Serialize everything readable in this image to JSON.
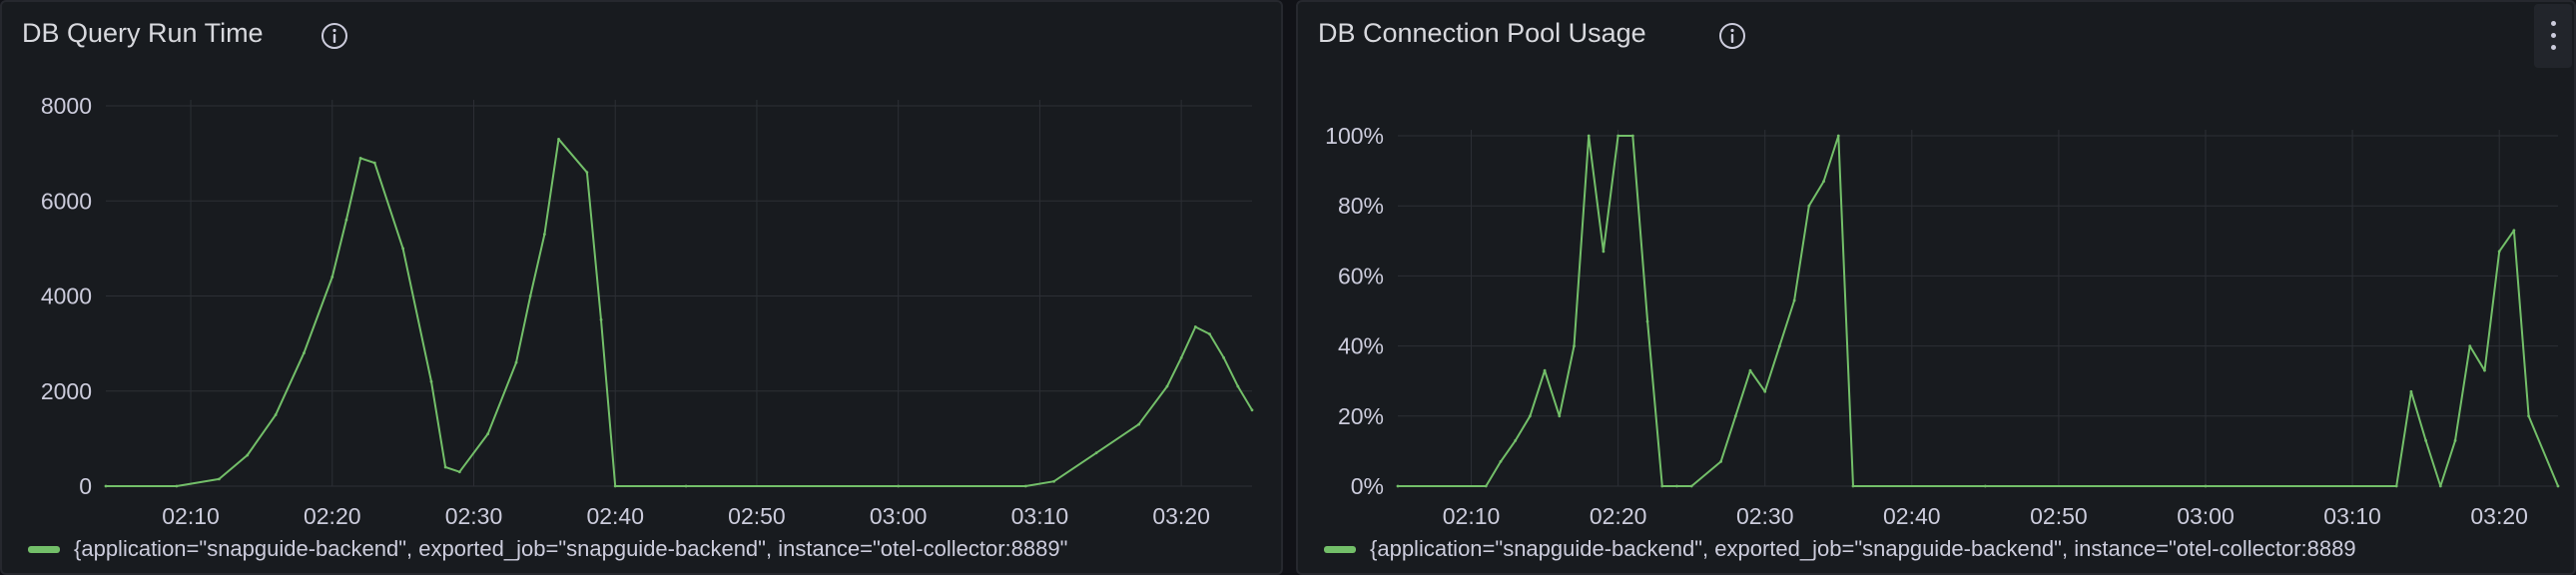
{
  "accent_color": "#73bf69",
  "panels": [
    {
      "title": "DB Query Run Time",
      "info_icon": "info-circle-icon",
      "legend": "{application=\"snapguide-backend\", exported_job=\"snapguide-backend\", instance=\"otel-collector:8889\"",
      "chart_data": {
        "type": "line",
        "title": "DB Query Run Time",
        "x_tick_labels": [
          "02:10",
          "02:20",
          "02:30",
          "02:40",
          "02:50",
          "03:00",
          "03:10",
          "03:20"
        ],
        "y_tick_labels": [
          "0",
          "2000",
          "4000",
          "6000",
          "8000"
        ],
        "xlim": [
          "02:04",
          "03:25"
        ],
        "ylim": [
          0,
          8000
        ],
        "grid": true,
        "legend_position": "bottom-left",
        "series": [
          {
            "name": "{application=\"snapguide-backend\", exported_job=\"snapguide-backend\", instance=\"otel-collector:8889\"",
            "color": "#73bf69",
            "x": [
              "02:04",
              "02:09",
              "02:12",
              "02:14",
              "02:16",
              "02:18",
              "02:20",
              "02:21",
              "02:22",
              "02:23",
              "02:25",
              "02:27",
              "02:28",
              "02:29",
              "02:31",
              "02:33",
              "02:34",
              "02:35",
              "02:36",
              "02:38",
              "02:39",
              "02:40",
              "02:45",
              "03:00",
              "03:09",
              "03:11",
              "03:14",
              "03:17",
              "03:19",
              "03:20",
              "03:21",
              "03:22",
              "03:23",
              "03:24",
              "03:25"
            ],
            "y": [
              0,
              0,
              150,
              650,
              1500,
              2800,
              4400,
              5600,
              6900,
              6800,
              5000,
              2200,
              400,
              300,
              1100,
              2600,
              4000,
              5300,
              7300,
              6600,
              3500,
              0,
              0,
              0,
              0,
              100,
              700,
              1300,
              2100,
              2700,
              3350,
              3200,
              2700,
              2100,
              1600
            ]
          }
        ]
      }
    },
    {
      "title": "DB Connection Pool Usage",
      "info_icon": "info-circle-icon",
      "legend": "{application=\"snapguide-backend\", exported_job=\"snapguide-backend\", instance=\"otel-collector:8889",
      "chart_data": {
        "type": "line",
        "title": "DB Connection Pool Usage",
        "x_tick_labels": [
          "02:10",
          "02:20",
          "02:30",
          "02:40",
          "02:50",
          "03:00",
          "03:10",
          "03:20"
        ],
        "y_tick_labels": [
          "0%",
          "20%",
          "40%",
          "60%",
          "80%",
          "100%"
        ],
        "xlim": [
          "02:05",
          "03:24"
        ],
        "ylim": [
          0,
          100
        ],
        "grid": true,
        "legend_position": "bottom-left",
        "series": [
          {
            "name": "{application=\"snapguide-backend\", exported_job=\"snapguide-backend\", instance=\"otel-collector:8889",
            "color": "#73bf69",
            "x": [
              "02:05",
              "02:11",
              "02:12",
              "02:13",
              "02:14",
              "02:15",
              "02:16",
              "02:17",
              "02:18",
              "02:19",
              "02:20",
              "02:21",
              "02:22",
              "02:23",
              "02:24",
              "02:25",
              "02:27",
              "02:28",
              "02:29",
              "02:30",
              "02:31",
              "02:32",
              "02:33",
              "02:34",
              "02:35",
              "02:36",
              "02:45",
              "03:00",
              "03:13",
              "03:14",
              "03:15",
              "03:16",
              "03:17",
              "03:18",
              "03:19",
              "03:20",
              "03:21",
              "03:22",
              "03:24"
            ],
            "y": [
              0,
              0,
              7,
              13,
              20,
              33,
              20,
              40,
              100,
              67,
              100,
              100,
              47,
              0,
              0,
              0,
              7,
              20,
              33,
              27,
              40,
              53,
              80,
              87,
              100,
              0,
              0,
              0,
              0,
              27,
              13,
              0,
              13,
              40,
              33,
              67,
              73,
              20,
              0
            ]
          }
        ]
      }
    }
  ]
}
